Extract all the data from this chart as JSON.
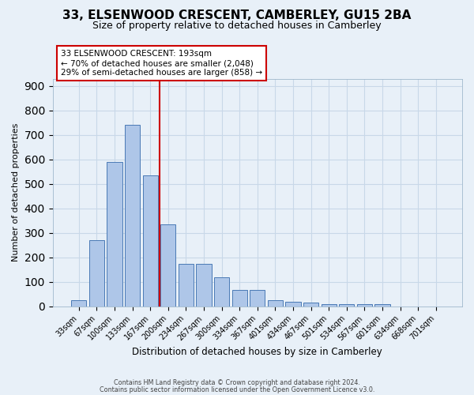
{
  "title": "33, ELSENWOOD CRESCENT, CAMBERLEY, GU15 2BA",
  "subtitle": "Size of property relative to detached houses in Camberley",
  "xlabel": "Distribution of detached houses by size in Camberley",
  "ylabel": "Number of detached properties",
  "bar_labels": [
    "33sqm",
    "67sqm",
    "100sqm",
    "133sqm",
    "167sqm",
    "200sqm",
    "234sqm",
    "267sqm",
    "300sqm",
    "334sqm",
    "367sqm",
    "401sqm",
    "434sqm",
    "467sqm",
    "501sqm",
    "534sqm",
    "567sqm",
    "601sqm",
    "634sqm",
    "668sqm",
    "701sqm"
  ],
  "bar_values": [
    27,
    272,
    590,
    740,
    535,
    335,
    175,
    175,
    120,
    68,
    68,
    25,
    20,
    15,
    10,
    10,
    10,
    10,
    0,
    0,
    0
  ],
  "bar_color": "#aec6e8",
  "bar_edge_color": "#4a7ab5",
  "vline_x": 4.5,
  "vline_color": "#cc0000",
  "annotation_text": "33 ELSENWOOD CRESCENT: 193sqm\n← 70% of detached houses are smaller (2,048)\n29% of semi-detached houses are larger (858) →",
  "annotation_box_facecolor": "#ffffff",
  "annotation_box_edgecolor": "#cc0000",
  "ylim": [
    0,
    930
  ],
  "yticks": [
    0,
    100,
    200,
    300,
    400,
    500,
    600,
    700,
    800,
    900
  ],
  "grid_color": "#c8d8e8",
  "bg_color": "#e8f0f8",
  "title_fontsize": 11,
  "subtitle_fontsize": 9,
  "footer1": "Contains HM Land Registry data © Crown copyright and database right 2024.",
  "footer2": "Contains public sector information licensed under the Open Government Licence v3.0."
}
